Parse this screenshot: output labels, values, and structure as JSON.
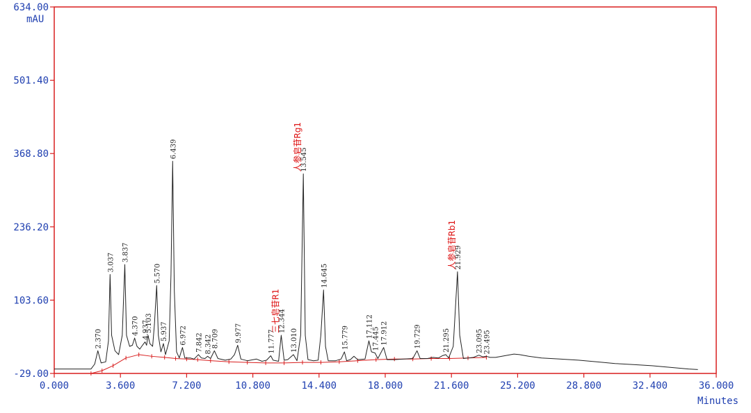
{
  "chart_data": {
    "type": "line",
    "title": "",
    "xlabel": "Minutes",
    "ylabel": "mAU",
    "xlim": [
      0,
      36
    ],
    "ylim": [
      -29,
      634
    ],
    "x_ticks": [
      "0.000",
      "3.600",
      "7.200",
      "10.800",
      "14.400",
      "18.000",
      "21.600",
      "25.200",
      "28.800",
      "32.400",
      "36.000"
    ],
    "y_ticks": [
      "-29.00",
      "103.60",
      "236.20",
      "368.80",
      "501.40",
      "634.00"
    ],
    "grid": false,
    "colors": {
      "frame": "#d81e1e",
      "trace": "#222222",
      "baseline": "#d81e1e",
      "axis_text": "#1f3fb0",
      "compound_label": "#dd1111"
    },
    "baseline_points": [
      [
        2.0,
        -29
      ],
      [
        2.6,
        -24
      ],
      [
        3.2,
        -15
      ],
      [
        3.9,
        -1
      ],
      [
        4.6,
        5
      ],
      [
        5.3,
        2
      ],
      [
        6.0,
        0
      ],
      [
        6.6,
        -2
      ],
      [
        7.2,
        -3
      ],
      [
        7.8,
        -4
      ],
      [
        8.5,
        -6
      ],
      [
        9.5,
        -8
      ],
      [
        10.5,
        -9
      ],
      [
        11.5,
        -10
      ],
      [
        12.5,
        -10
      ],
      [
        13.5,
        -9
      ],
      [
        14.5,
        -9
      ],
      [
        15.5,
        -8
      ],
      [
        16.5,
        -6
      ],
      [
        17.5,
        -4
      ],
      [
        18.5,
        -3
      ],
      [
        19.5,
        -3
      ],
      [
        20.5,
        -2
      ],
      [
        21.5,
        -2
      ],
      [
        22.5,
        -1
      ],
      [
        23.5,
        0
      ]
    ],
    "trace_points": [
      [
        0.0,
        -21
      ],
      [
        1.5,
        -21
      ],
      [
        2.0,
        -21
      ],
      [
        2.2,
        -12
      ],
      [
        2.37,
        12
      ],
      [
        2.55,
        -10
      ],
      [
        2.8,
        -8
      ],
      [
        2.95,
        30
      ],
      [
        3.037,
        150
      ],
      [
        3.12,
        40
      ],
      [
        3.3,
        12
      ],
      [
        3.5,
        5
      ],
      [
        3.7,
        40
      ],
      [
        3.837,
        168
      ],
      [
        3.93,
        40
      ],
      [
        4.1,
        20
      ],
      [
        4.25,
        22
      ],
      [
        4.37,
        35
      ],
      [
        4.5,
        20
      ],
      [
        4.65,
        15
      ],
      [
        4.8,
        22
      ],
      [
        4.937,
        28
      ],
      [
        5.02,
        22
      ],
      [
        5.103,
        40
      ],
      [
        5.2,
        25
      ],
      [
        5.35,
        20
      ],
      [
        5.45,
        60
      ],
      [
        5.57,
        130
      ],
      [
        5.66,
        40
      ],
      [
        5.8,
        10
      ],
      [
        5.937,
        25
      ],
      [
        6.05,
        5
      ],
      [
        6.25,
        30
      ],
      [
        6.35,
        150
      ],
      [
        6.439,
        355
      ],
      [
        6.53,
        120
      ],
      [
        6.65,
        10
      ],
      [
        6.8,
        -1
      ],
      [
        6.972,
        18
      ],
      [
        7.1,
        -1
      ],
      [
        7.4,
        -1
      ],
      [
        7.6,
        -3
      ],
      [
        7.842,
        5
      ],
      [
        8.0,
        -1
      ],
      [
        8.2,
        -2
      ],
      [
        8.342,
        2
      ],
      [
        8.5,
        -2
      ],
      [
        8.709,
        12
      ],
      [
        8.9,
        -2
      ],
      [
        9.3,
        -5
      ],
      [
        9.6,
        -3
      ],
      [
        9.8,
        5
      ],
      [
        9.977,
        22
      ],
      [
        10.15,
        -3
      ],
      [
        10.5,
        -6
      ],
      [
        11.0,
        -3
      ],
      [
        11.3,
        -7
      ],
      [
        11.55,
        -5
      ],
      [
        11.777,
        3
      ],
      [
        11.9,
        -5
      ],
      [
        12.2,
        -7
      ],
      [
        12.344,
        40
      ],
      [
        12.5,
        -5
      ],
      [
        12.7,
        -4
      ],
      [
        13.01,
        5
      ],
      [
        13.2,
        -6
      ],
      [
        13.4,
        40
      ],
      [
        13.545,
        332
      ],
      [
        13.65,
        40
      ],
      [
        13.8,
        -4
      ],
      [
        14.1,
        -6
      ],
      [
        14.35,
        -5
      ],
      [
        14.5,
        40
      ],
      [
        14.645,
        122
      ],
      [
        14.75,
        20
      ],
      [
        14.9,
        -6
      ],
      [
        15.3,
        -6
      ],
      [
        15.6,
        -3
      ],
      [
        15.779,
        10
      ],
      [
        15.9,
        -6
      ],
      [
        16.1,
        -4
      ],
      [
        16.3,
        2
      ],
      [
        16.5,
        -4
      ],
      [
        16.9,
        -3
      ],
      [
        17.112,
        30
      ],
      [
        17.25,
        10
      ],
      [
        17.445,
        8
      ],
      [
        17.6,
        -2
      ],
      [
        17.912,
        18
      ],
      [
        18.1,
        -4
      ],
      [
        18.5,
        -4
      ],
      [
        19.0,
        -3
      ],
      [
        19.5,
        -2
      ],
      [
        19.729,
        12
      ],
      [
        19.9,
        -2
      ],
      [
        20.3,
        -2
      ],
      [
        20.6,
        0
      ],
      [
        20.9,
        -1
      ],
      [
        21.1,
        3
      ],
      [
        21.295,
        5
      ],
      [
        21.45,
        -1
      ],
      [
        21.7,
        20
      ],
      [
        21.929,
        155
      ],
      [
        22.05,
        40
      ],
      [
        22.25,
        -2
      ],
      [
        22.8,
        0
      ],
      [
        23.095,
        4
      ],
      [
        23.3,
        1
      ],
      [
        23.495,
        2
      ],
      [
        23.7,
        0
      ],
      [
        24.0,
        0
      ],
      [
        24.5,
        3
      ],
      [
        25.0,
        6
      ],
      [
        25.3,
        5
      ],
      [
        25.8,
        2
      ],
      [
        26.5,
        -1
      ],
      [
        27.5,
        -3
      ],
      [
        28.5,
        -5
      ],
      [
        29.5,
        -8
      ],
      [
        30.5,
        -11
      ],
      [
        31.5,
        -13
      ],
      [
        32.5,
        -15
      ],
      [
        33.5,
        -18
      ],
      [
        34.5,
        -21
      ],
      [
        35.0,
        -22
      ]
    ],
    "peaks": [
      {
        "rt": 2.37,
        "label": "2.370",
        "y": 12
      },
      {
        "rt": 3.037,
        "label": "3.037",
        "y": 150
      },
      {
        "rt": 3.837,
        "label": "3.837",
        "y": 168
      },
      {
        "rt": 4.37,
        "label": "4.370",
        "y": 35
      },
      {
        "rt": 4.937,
        "label": "4.937",
        "y": 28
      },
      {
        "rt": 5.103,
        "label": "5.103",
        "y": 40
      },
      {
        "rt": 5.57,
        "label": "5.570",
        "y": 130
      },
      {
        "rt": 5.937,
        "label": "5.937",
        "y": 25
      },
      {
        "rt": 6.439,
        "label": "6.439",
        "y": 355
      },
      {
        "rt": 6.972,
        "label": "6.972",
        "y": 18
      },
      {
        "rt": 7.842,
        "label": "7.842",
        "y": 5
      },
      {
        "rt": 8.342,
        "label": "8.342",
        "y": 2
      },
      {
        "rt": 8.709,
        "label": "8.709",
        "y": 12
      },
      {
        "rt": 9.977,
        "label": "9.977",
        "y": 22
      },
      {
        "rt": 11.777,
        "label": "11.777",
        "y": 3
      },
      {
        "rt": 12.344,
        "label": "12.344",
        "y": 40
      },
      {
        "rt": 13.01,
        "label": "13.010",
        "y": 5
      },
      {
        "rt": 13.545,
        "label": "13.545",
        "y": 332
      },
      {
        "rt": 14.645,
        "label": "14.645",
        "y": 122
      },
      {
        "rt": 15.779,
        "label": "15.779",
        "y": 10
      },
      {
        "rt": 17.112,
        "label": "17.112",
        "y": 30
      },
      {
        "rt": 17.445,
        "label": "17.445",
        "y": 8
      },
      {
        "rt": 17.912,
        "label": "17.912",
        "y": 18
      },
      {
        "rt": 19.729,
        "label": "19.729",
        "y": 12
      },
      {
        "rt": 21.295,
        "label": "21.295",
        "y": 5
      },
      {
        "rt": 21.929,
        "label": "21.929",
        "y": 155
      },
      {
        "rt": 23.095,
        "label": "23.095",
        "y": 4
      },
      {
        "rt": 23.495,
        "label": "23.495",
        "y": 2
      }
    ],
    "compound_labels": [
      {
        "rt": 12.344,
        "name": "三七皂苷R1",
        "y": 40
      },
      {
        "rt": 13.545,
        "name": "人参皂苷Rg1",
        "y": 332
      },
      {
        "rt": 21.929,
        "name": "人参皂苷Rb1",
        "y": 155
      }
    ]
  }
}
